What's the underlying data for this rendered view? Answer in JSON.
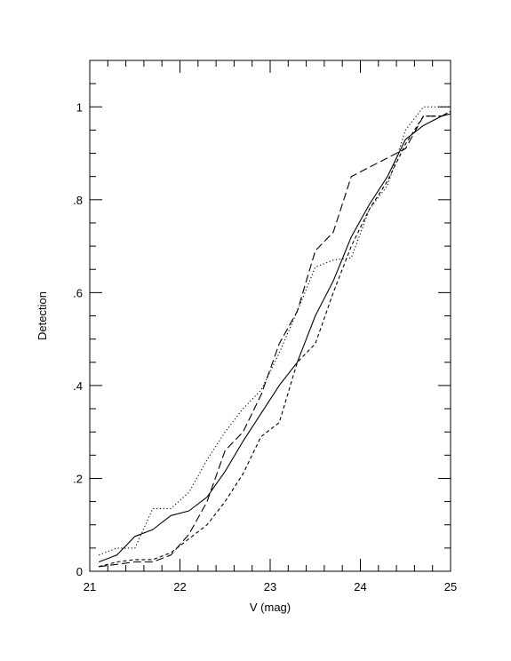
{
  "chart_data": {
    "type": "line",
    "title": "",
    "xlabel": "V (mag)",
    "ylabel": "Detection",
    "xlim": [
      21,
      25
    ],
    "ylim": [
      0,
      1.1
    ],
    "xticks": [
      21,
      22,
      23,
      24,
      25
    ],
    "xtick_labels": [
      "21",
      "22",
      "23",
      "24",
      "25"
    ],
    "yticks": [
      0,
      0.2,
      0.4,
      0.6,
      0.8,
      1.0
    ],
    "ytick_labels": [
      "0",
      ".2",
      ".4",
      ".6",
      ".8",
      "1"
    ],
    "grid": false,
    "legend": "none",
    "series": [
      {
        "style": "solid",
        "x": [
          21.1,
          21.3,
          21.5,
          21.7,
          21.9,
          22.1,
          22.3,
          22.5,
          22.7,
          22.9,
          23.1,
          23.3,
          23.5,
          23.7,
          23.9,
          24.1,
          24.3,
          24.5,
          24.7,
          24.9,
          25.0
        ],
        "y": [
          0.02,
          0.035,
          0.075,
          0.09,
          0.12,
          0.13,
          0.16,
          0.215,
          0.28,
          0.34,
          0.4,
          0.45,
          0.55,
          0.625,
          0.72,
          0.79,
          0.85,
          0.93,
          0.96,
          0.98,
          0.985
        ]
      },
      {
        "style": "dotted",
        "x": [
          21.1,
          21.3,
          21.5,
          21.7,
          21.9,
          22.1,
          22.3,
          22.5,
          22.7,
          22.9,
          23.1,
          23.3,
          23.5,
          23.7,
          23.9,
          24.1,
          24.3,
          24.5,
          24.7,
          24.9,
          25.0
        ],
        "y": [
          0.035,
          0.05,
          0.05,
          0.135,
          0.135,
          0.17,
          0.24,
          0.3,
          0.35,
          0.39,
          0.47,
          0.56,
          0.655,
          0.67,
          0.675,
          0.78,
          0.83,
          0.95,
          1.0,
          1.0,
          1.0
        ]
      },
      {
        "style": "short-dash",
        "x": [
          21.1,
          21.3,
          21.5,
          21.7,
          21.9,
          22.1,
          22.3,
          22.5,
          22.7,
          22.9,
          23.1,
          23.3,
          23.5,
          23.7,
          23.9,
          24.1,
          24.3,
          24.5,
          24.7,
          24.9,
          25.0
        ],
        "y": [
          0.01,
          0.02,
          0.025,
          0.025,
          0.04,
          0.07,
          0.1,
          0.15,
          0.21,
          0.29,
          0.32,
          0.45,
          0.49,
          0.6,
          0.7,
          0.78,
          0.84,
          0.92,
          0.98,
          0.98,
          0.99
        ]
      },
      {
        "style": "long-dash",
        "x": [
          21.1,
          21.3,
          21.5,
          21.7,
          21.9,
          22.1,
          22.3,
          22.5,
          22.7,
          22.9,
          23.1,
          23.3,
          23.5,
          23.7,
          23.9,
          24.1,
          24.3,
          24.5,
          24.7,
          24.9,
          25.0
        ],
        "y": [
          0.01,
          0.015,
          0.02,
          0.02,
          0.035,
          0.08,
          0.15,
          0.26,
          0.3,
          0.38,
          0.49,
          0.56,
          0.69,
          0.73,
          0.85,
          0.87,
          0.89,
          0.91,
          0.98,
          0.98,
          0.99
        ]
      }
    ]
  }
}
